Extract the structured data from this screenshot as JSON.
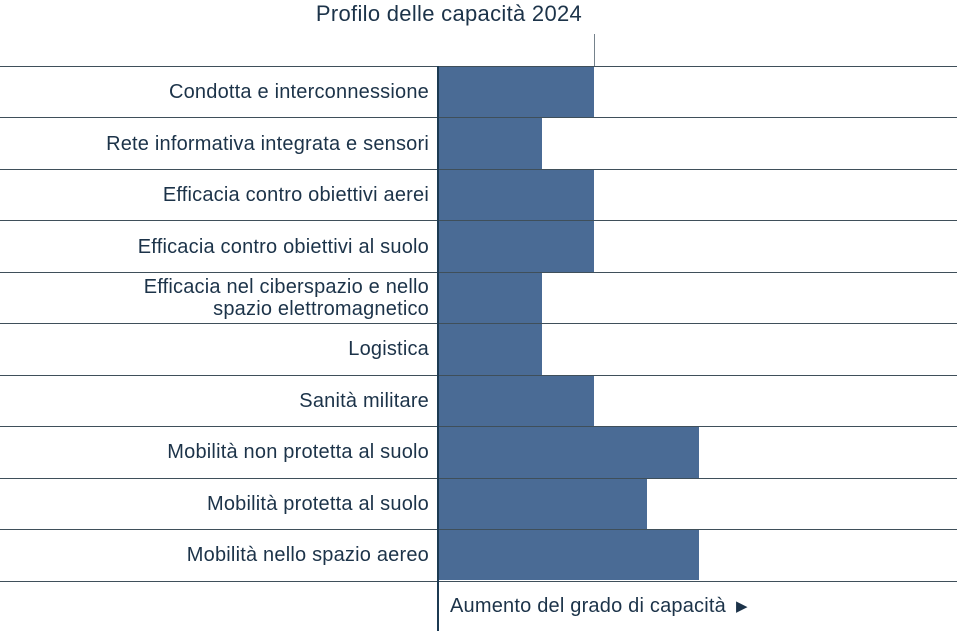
{
  "title": "Profilo delle capacità 2024",
  "x_axis_arrow": "▶",
  "colors": {
    "background": "#ffffff",
    "bar": "#4a6b95",
    "grid_line": "#3f4f5a",
    "axis_line": "#1c3a52",
    "reference_line": "#75828c",
    "text": "#1c3349"
  },
  "chart_data": {
    "type": "bar",
    "orientation": "horizontal",
    "title": "Profilo delle capacità 2024",
    "xlabel": "Aumento del grado di capacità",
    "ylabel": "",
    "categories": [
      "Condotta e interconnessione",
      "Rete informativa integrata e sensori",
      "Efficacia contro obiettivi aerei",
      "Efficacia contro obiettivi al suolo",
      "Efficacia nel ciberspazio e nello\nspazio elettromagnetico",
      "Logistica",
      "Sanità militare",
      "Mobilità non protetta al suolo",
      "Mobilità protetta al suolo",
      "Mobilità nello spazio aereo"
    ],
    "values": [
      3,
      2,
      3,
      3,
      2,
      2,
      3,
      5,
      4,
      5
    ],
    "x_range": [
      0,
      10
    ],
    "x_ticks": "none (unlabeled relative capability scale)",
    "reference_value": 3,
    "grid": "horizontal row separator lines only, full width",
    "legend": "none"
  }
}
